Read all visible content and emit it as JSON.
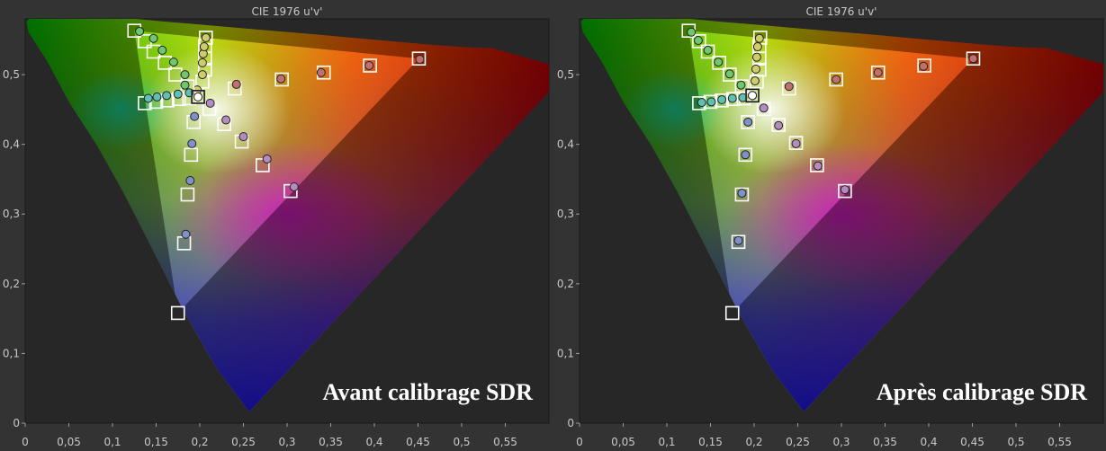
{
  "chart_data": [
    {
      "type": "scatter",
      "title": "CIE 1976 u'v'",
      "caption": "Avant calibrage SDR",
      "xlim": [
        0,
        0.6
      ],
      "ylim": [
        0,
        0.58
      ],
      "x_ticks": [
        "0",
        "0,05",
        "0,1",
        "0,15",
        "0,2",
        "0,25",
        "0,3",
        "0,35",
        "0,4",
        "0,45",
        "0,5",
        "0,55"
      ],
      "y_ticks": [
        "0",
        "0,1",
        "0,2",
        "0,3",
        "0,4",
        "0,5"
      ],
      "white_target": [
        0.198,
        0.468
      ],
      "gamut_triangle": [
        [
          0.451,
          0.523
        ],
        [
          0.125,
          0.563
        ],
        [
          0.175,
          0.158
        ]
      ],
      "series": [
        {
          "targets": [
            [
              0.198,
              0.468
            ],
            [
              0.203,
              0.49
            ],
            [
              0.206,
              0.507
            ],
            [
              0.206,
              0.523
            ],
            [
              0.206,
              0.541
            ],
            [
              0.207,
              0.553
            ]
          ],
          "measured": [
            [
              0.197,
              0.478
            ],
            [
              0.203,
              0.5
            ],
            [
              0.203,
              0.517
            ],
            [
              0.204,
              0.53
            ],
            [
              0.205,
              0.54
            ],
            [
              0.207,
              0.553
            ]
          ],
          "color": "#d0cc6e"
        },
        {
          "targets": [
            [
              0.198,
              0.468
            ],
            [
              0.186,
              0.483
            ],
            [
              0.172,
              0.5
            ],
            [
              0.16,
              0.517
            ],
            [
              0.147,
              0.533
            ],
            [
              0.137,
              0.548
            ],
            [
              0.125,
              0.563
            ]
          ],
          "measured": [
            [
              0.183,
              0.485
            ],
            [
              0.183,
              0.5
            ],
            [
              0.17,
              0.518
            ],
            [
              0.157,
              0.535
            ],
            [
              0.147,
              0.552
            ],
            [
              0.131,
              0.562
            ]
          ],
          "color": "#6ec86e"
        },
        {
          "targets": [
            [
              0.198,
              0.468
            ],
            [
              0.188,
              0.466
            ],
            [
              0.176,
              0.465
            ],
            [
              0.163,
              0.463
            ],
            [
              0.15,
              0.461
            ],
            [
              0.137,
              0.459
            ]
          ],
          "measured": [
            [
              0.188,
              0.474
            ],
            [
              0.175,
              0.472
            ],
            [
              0.162,
              0.47
            ],
            [
              0.151,
              0.468
            ],
            [
              0.141,
              0.466
            ]
          ],
          "color": "#5ec0b2"
        },
        {
          "targets": [
            [
              0.198,
              0.468
            ],
            [
              0.193,
              0.432
            ],
            [
              0.19,
              0.385
            ],
            [
              0.186,
              0.328
            ],
            [
              0.182,
              0.258
            ],
            [
              0.175,
              0.158
            ]
          ],
          "measured": [
            [
              0.194,
              0.44
            ],
            [
              0.191,
              0.401
            ],
            [
              0.189,
              0.348
            ],
            [
              0.184,
              0.271
            ]
          ],
          "color": "#8090c8"
        },
        {
          "targets": [
            [
              0.198,
              0.468
            ],
            [
              0.211,
              0.451
            ],
            [
              0.228,
              0.429
            ],
            [
              0.248,
              0.404
            ],
            [
              0.272,
              0.37
            ],
            [
              0.304,
              0.333
            ]
          ],
          "measured": [
            [
              0.212,
              0.459
            ],
            [
              0.23,
              0.435
            ],
            [
              0.25,
              0.411
            ],
            [
              0.277,
              0.379
            ],
            [
              0.308,
              0.339
            ]
          ],
          "color": "#b48cc0"
        },
        {
          "targets": [
            [
              0.198,
              0.468
            ],
            [
              0.24,
              0.48
            ],
            [
              0.294,
              0.493
            ],
            [
              0.342,
              0.503
            ],
            [
              0.395,
              0.513
            ],
            [
              0.451,
              0.523
            ]
          ],
          "measured": [
            [
              0.242,
              0.486
            ],
            [
              0.293,
              0.494
            ],
            [
              0.339,
              0.503
            ],
            [
              0.394,
              0.513
            ],
            [
              0.452,
              0.522
            ]
          ],
          "color": "#c07070"
        }
      ]
    },
    {
      "type": "scatter",
      "title": "CIE 1976 u'v'",
      "caption": "Après calibrage SDR",
      "xlim": [
        0,
        0.6
      ],
      "ylim": [
        0,
        0.58
      ],
      "x_ticks": [
        "0",
        "0,05",
        "0,1",
        "0,15",
        "0,2",
        "0,25",
        "0,3",
        "0,35",
        "0,4",
        "0,45",
        "0,5",
        "0,55"
      ],
      "y_ticks": [
        "0",
        "0,1",
        "0,2",
        "0,3",
        "0,4",
        "0,5"
      ],
      "white_target": [
        0.198,
        0.47
      ],
      "gamut_triangle": [
        [
          0.451,
          0.523
        ],
        [
          0.125,
          0.563
        ],
        [
          0.175,
          0.158
        ]
      ],
      "series": [
        {
          "targets": [
            [
              0.198,
              0.47
            ],
            [
              0.203,
              0.49
            ],
            [
              0.206,
              0.507
            ],
            [
              0.206,
              0.523
            ],
            [
              0.206,
              0.541
            ],
            [
              0.207,
              0.553
            ]
          ],
          "measured": [
            [
              0.198,
              0.47
            ],
            [
              0.201,
              0.491
            ],
            [
              0.202,
              0.508
            ],
            [
              0.203,
              0.525
            ],
            [
              0.204,
              0.54
            ],
            [
              0.206,
              0.552
            ]
          ],
          "color": "#d0cc6e"
        },
        {
          "targets": [
            [
              0.198,
              0.47
            ],
            [
              0.186,
              0.483
            ],
            [
              0.172,
              0.5
            ],
            [
              0.16,
              0.517
            ],
            [
              0.147,
              0.533
            ],
            [
              0.137,
              0.548
            ],
            [
              0.125,
              0.563
            ]
          ],
          "measured": [
            [
              0.185,
              0.485
            ],
            [
              0.172,
              0.501
            ],
            [
              0.159,
              0.518
            ],
            [
              0.147,
              0.535
            ],
            [
              0.136,
              0.549
            ],
            [
              0.128,
              0.561
            ]
          ],
          "color": "#6ec86e"
        },
        {
          "targets": [
            [
              0.198,
              0.47
            ],
            [
              0.188,
              0.466
            ],
            [
              0.176,
              0.465
            ],
            [
              0.163,
              0.463
            ],
            [
              0.15,
              0.461
            ],
            [
              0.137,
              0.459
            ]
          ],
          "measured": [
            [
              0.187,
              0.467
            ],
            [
              0.175,
              0.466
            ],
            [
              0.163,
              0.464
            ],
            [
              0.151,
              0.461
            ],
            [
              0.14,
              0.46
            ]
          ],
          "color": "#5ec0b2"
        },
        {
          "targets": [
            [
              0.198,
              0.47
            ],
            [
              0.193,
              0.432
            ],
            [
              0.19,
              0.385
            ],
            [
              0.186,
              0.328
            ],
            [
              0.182,
              0.26
            ],
            [
              0.175,
              0.158
            ]
          ],
          "measured": [
            [
              0.193,
              0.432
            ],
            [
              0.19,
              0.385
            ],
            [
              0.186,
              0.33
            ],
            [
              0.182,
              0.262
            ]
          ],
          "color": "#8090c8"
        },
        {
          "targets": [
            [
              0.198,
              0.47
            ],
            [
              0.211,
              0.451
            ],
            [
              0.228,
              0.428
            ],
            [
              0.248,
              0.402
            ],
            [
              0.272,
              0.37
            ],
            [
              0.304,
              0.333
            ]
          ],
          "measured": [
            [
              0.211,
              0.452
            ],
            [
              0.228,
              0.427
            ],
            [
              0.248,
              0.401
            ],
            [
              0.273,
              0.369
            ],
            [
              0.304,
              0.335
            ]
          ],
          "color": "#b48cc0"
        },
        {
          "targets": [
            [
              0.198,
              0.47
            ],
            [
              0.24,
              0.48
            ],
            [
              0.294,
              0.493
            ],
            [
              0.342,
              0.503
            ],
            [
              0.395,
              0.513
            ],
            [
              0.451,
              0.523
            ]
          ],
          "measured": [
            [
              0.24,
              0.483
            ],
            [
              0.294,
              0.493
            ],
            [
              0.342,
              0.503
            ],
            [
              0.394,
              0.512
            ],
            [
              0.451,
              0.523
            ]
          ],
          "color": "#c07070"
        }
      ]
    }
  ]
}
